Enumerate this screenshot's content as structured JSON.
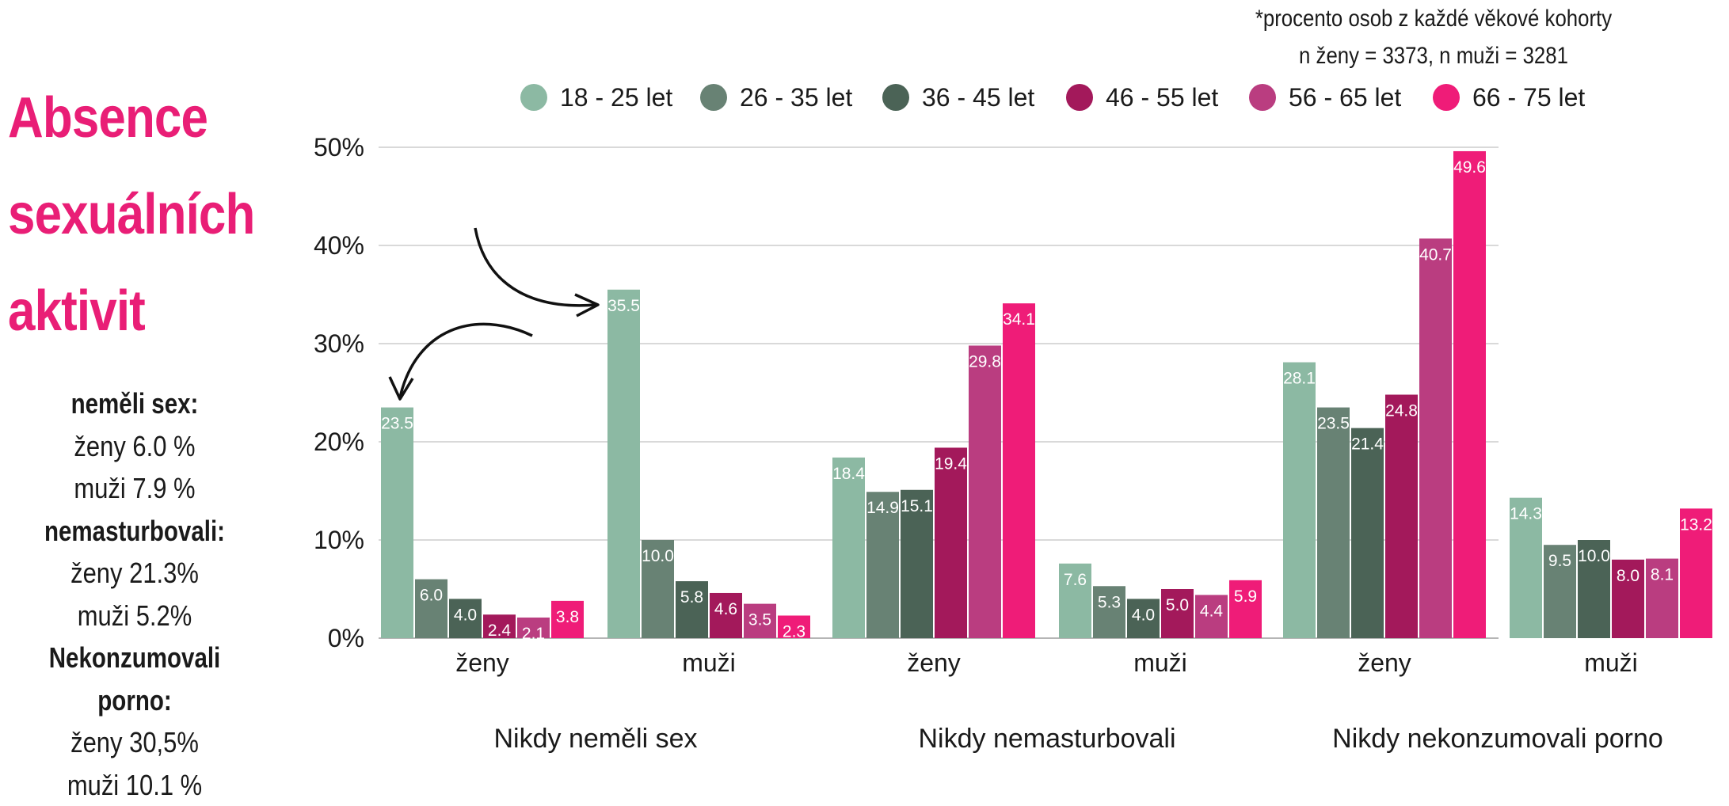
{
  "side_title": [
    "Absence",
    "sexuálních",
    "aktivit"
  ],
  "summary": [
    {
      "kind": "label",
      "text": "neměli sex:"
    },
    {
      "kind": "value",
      "text": "ženy 6.0 %"
    },
    {
      "kind": "value",
      "text": "muži 7.9 %"
    },
    {
      "kind": "label",
      "text": "nemasturbovali:"
    },
    {
      "kind": "value",
      "text": "ženy 21.3%"
    },
    {
      "kind": "value",
      "text": "muži 5.2%"
    },
    {
      "kind": "label",
      "text": "Nekonzumovali porno:"
    },
    {
      "kind": "value",
      "text": "ženy 30,5%"
    },
    {
      "kind": "value",
      "text": "muži 10.1 %"
    }
  ],
  "note": {
    "line1": "*procento osob z každé věkové kohorty",
    "line2": "n ženy = 3373, n muži = 3281"
  },
  "chart_data": {
    "type": "bar",
    "title": "Absence sexuálních aktivit",
    "ylabel": "",
    "xlabel": "",
    "ylim": [
      0,
      50
    ],
    "yticks": [
      0,
      10,
      20,
      30,
      40,
      50
    ],
    "ytick_labels": [
      "0%",
      "10%",
      "20%",
      "30%",
      "40%",
      "50%"
    ],
    "grid": true,
    "legend_position": "top",
    "groups": [
      "Nikdy neměli sex",
      "Nikdy nemasturbovali",
      "Nikdy nekonzumovali porno"
    ],
    "categories": [
      "ženy",
      "muži",
      "ženy",
      "muži",
      "ženy",
      "muži"
    ],
    "series": [
      {
        "name": "18 - 25 let",
        "color": "#8cb9a3",
        "values": [
          23.5,
          35.5,
          18.4,
          7.6,
          28.1,
          14.3
        ]
      },
      {
        "name": "26 - 35 let",
        "color": "#688274",
        "values": [
          6.0,
          10.0,
          14.9,
          5.3,
          23.5,
          9.5
        ]
      },
      {
        "name": "36 - 45 let",
        "color": "#4b6356",
        "values": [
          4.0,
          5.8,
          15.1,
          4.0,
          21.4,
          10.0
        ]
      },
      {
        "name": "46 - 55 let",
        "color": "#a3195b",
        "values": [
          2.4,
          4.6,
          19.4,
          5.0,
          24.8,
          8.0
        ]
      },
      {
        "name": "56 - 65 let",
        "color": "#ba3d80",
        "values": [
          2.1,
          3.5,
          29.8,
          4.4,
          40.7,
          8.1
        ]
      },
      {
        "name": "66 - 75 let",
        "color": "#ef1c78",
        "values": [
          3.8,
          2.3,
          34.1,
          5.9,
          49.6,
          13.2
        ]
      }
    ],
    "annotations": [
      "arrows linking 23.5 (ženy) and 35.5 (muži)"
    ]
  }
}
